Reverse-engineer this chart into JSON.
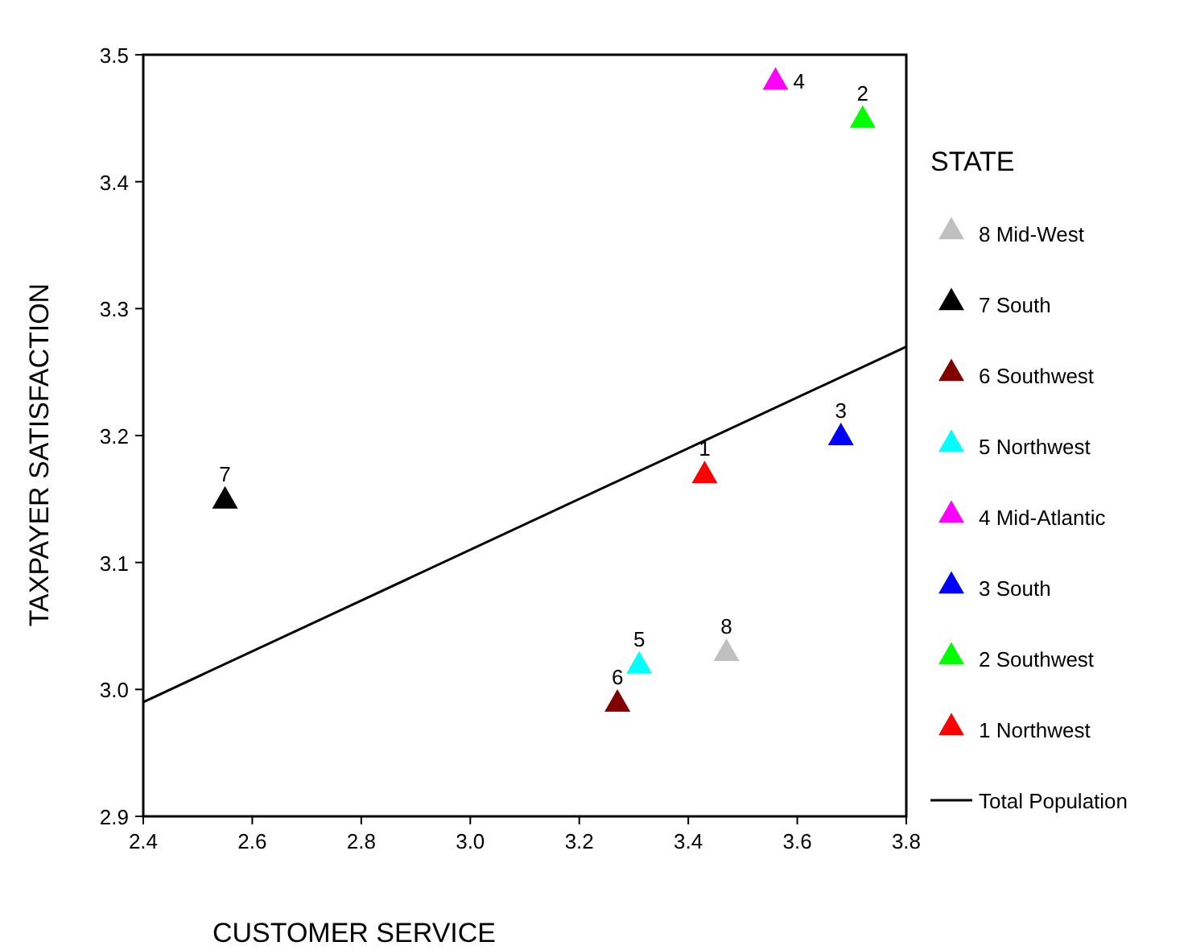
{
  "chart_data": {
    "type": "scatter",
    "xlabel": "CUSTOMER SERVICE",
    "ylabel": "TAXPAYER SATISFACTION",
    "legend_title": "STATE",
    "legend": "right",
    "marker": "triangle",
    "grid": false,
    "xlim": [
      2.4,
      3.8
    ],
    "xticks": [
      2.4,
      2.6,
      2.8,
      {
        "value": 3,
        "label": "3.0"
      },
      3.2,
      3.4,
      3.6,
      3.8
    ],
    "ylim": [
      2.9,
      3.5
    ],
    "yticks": [
      2.9,
      {
        "value": 3,
        "label": "3.0"
      },
      3.1,
      3.2,
      3.3,
      3.4,
      3.5
    ],
    "series": [
      {
        "name": "8 Mid-West",
        "color": "#c0c0c0",
        "x": [
          3.47
        ],
        "values": [
          3.03
        ]
      },
      {
        "name": "7 South",
        "color": "#000000",
        "x": [
          2.55
        ],
        "values": [
          3.15
        ]
      },
      {
        "name": "6 Southwest",
        "color": "#800000",
        "x": [
          3.27
        ],
        "values": [
          2.99
        ]
      },
      {
        "name": "5 Northwest",
        "color": "#00ffff",
        "x": [
          3.31
        ],
        "values": [
          3.02
        ]
      },
      {
        "name": "4 Mid-Atlantic",
        "color": "#ff00ff",
        "x": [
          3.56
        ],
        "values": [
          3.48
        ]
      },
      {
        "name": "3 South",
        "color": "#0000ff",
        "x": [
          3.68
        ],
        "values": [
          3.2
        ]
      },
      {
        "name": "2 Southwest",
        "color": "#00ff00",
        "x": [
          3.72
        ],
        "values": [
          3.45
        ]
      },
      {
        "name": "1 Northwest",
        "color": "#ff0000",
        "x": [
          3.43
        ],
        "values": [
          3.17
        ]
      },
      {
        "name": "Total Population",
        "type": "line",
        "color": "#000000",
        "marker": "none",
        "x": [
          2.4,
          3.8
        ],
        "values": [
          2.99,
          3.27
        ]
      }
    ],
    "annotations": [
      {
        "text": "8",
        "x": 3.47,
        "y": 3.03
      },
      {
        "text": "7",
        "x": 2.55,
        "y": 3.15
      },
      {
        "text": "6",
        "x": 3.27,
        "y": 2.99
      },
      {
        "text": "5",
        "x": 3.31,
        "y": 3.02
      },
      {
        "text": "4",
        "x": 3.56,
        "y": 3.48
      },
      {
        "text": "3",
        "x": 3.68,
        "y": 3.2
      },
      {
        "text": "2",
        "x": 3.72,
        "y": 3.45
      },
      {
        "text": "1",
        "x": 3.43,
        "y": 3.17
      }
    ]
  }
}
